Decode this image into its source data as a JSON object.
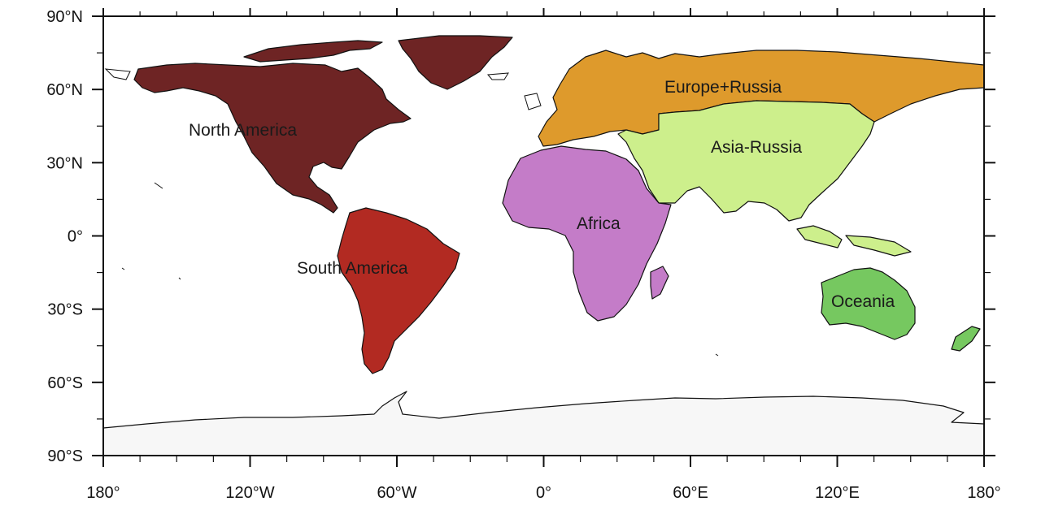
{
  "map": {
    "colors": {
      "north_america": "#6e2424",
      "south_america": "#b22a22",
      "europe_russia": "#de9a2c",
      "asia_russia": "#cdef8c",
      "africa": "#c47cc8",
      "oceania": "#76c860",
      "antarctica": "#f7f7f7",
      "ocean": "#ffffff"
    },
    "regions": [
      {
        "key": "north_america",
        "label": "North America"
      },
      {
        "key": "south_america",
        "label": "South America"
      },
      {
        "key": "europe_russia",
        "label": "Europe+Russia"
      },
      {
        "key": "asia_russia",
        "label": "Asia-Russia"
      },
      {
        "key": "africa",
        "label": "Africa"
      },
      {
        "key": "oceania",
        "label": "Oceania"
      }
    ],
    "lat_labels": [
      "90°N",
      "60°N",
      "30°N",
      "0°",
      "30°S",
      "60°S",
      "90°S"
    ],
    "lon_labels": [
      "180°",
      "120°W",
      "60°W",
      "0°",
      "60°E",
      "120°E",
      "180°"
    ]
  }
}
